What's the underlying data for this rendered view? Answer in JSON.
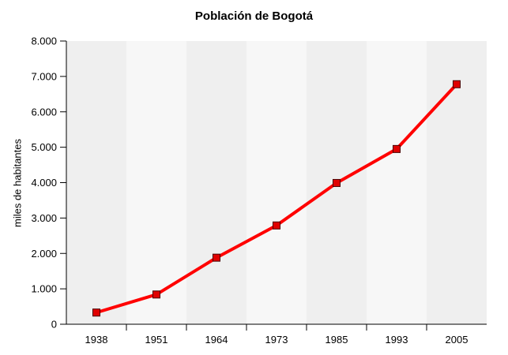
{
  "chart_data": {
    "type": "line",
    "title": "Población de Bogotá",
    "xlabel": "",
    "ylabel": "miles de habitantes",
    "categories": [
      "1938",
      "1951",
      "1964",
      "1973",
      "1985",
      "1993",
      "2005"
    ],
    "series": [
      {
        "values": [
          330,
          840,
          1880,
          2790,
          3990,
          4950,
          6780
        ],
        "color": "#ff0000",
        "marker_color": "#e00000",
        "marker": "square"
      }
    ],
    "ylim": [
      0,
      8000
    ],
    "yticks": [
      {
        "value": 0,
        "label": "0"
      },
      {
        "value": 1000,
        "label": "1.000"
      },
      {
        "value": 2000,
        "label": "2.000"
      },
      {
        "value": 3000,
        "label": "3.000"
      },
      {
        "value": 4000,
        "label": "4.000"
      },
      {
        "value": 5000,
        "label": "5.000"
      },
      {
        "value": 6000,
        "label": "6.000"
      },
      {
        "value": 7000,
        "label": "7.000"
      },
      {
        "value": 8000,
        "label": "8.000"
      }
    ],
    "grid": false,
    "legend": "none",
    "background_bands": [
      "#efefef",
      "#f7f7f7"
    ]
  }
}
